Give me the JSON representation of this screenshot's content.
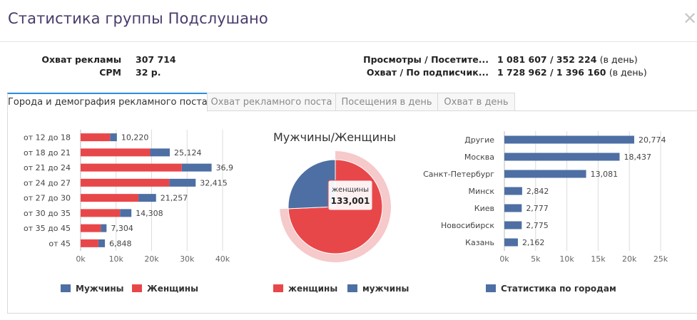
{
  "header": {
    "title": "Статистика группы Подслушано",
    "close": "✕"
  },
  "stats": {
    "left": [
      {
        "label": "Охват рекламы",
        "value": "307 714",
        "unit": ""
      },
      {
        "label": "CPM",
        "value": "32 р.",
        "unit": ""
      }
    ],
    "right": [
      {
        "label": "Просмотры / Посетите...",
        "value": "1 081 607 / 352 224",
        "unit": "(в день)"
      },
      {
        "label": "Охват / По подписчик...",
        "value": "1 728 962 / 1 396 160",
        "unit": "(в день)"
      }
    ]
  },
  "tabs": [
    {
      "label": "Города и демография рекламного поста",
      "active": true
    },
    {
      "label": "Охват рекламного поста",
      "active": false
    },
    {
      "label": "Посещения в день",
      "active": false
    },
    {
      "label": "Охват в день",
      "active": false
    }
  ],
  "colors": {
    "male": "#4e6fa3",
    "female": "#e8474a",
    "accent": "#2a8ddf",
    "title": "#4a3a6b"
  },
  "chart_data": [
    {
      "type": "bar",
      "orientation": "horizontal",
      "stacked": true,
      "categories": [
        "от 12 до 18",
        "от 18 до 21",
        "от 21 до 24",
        "от 24 до 27",
        "от 27 до 30",
        "от 30 до 35",
        "от 35 до 45",
        "от 45"
      ],
      "series": [
        {
          "name": "Женщины",
          "color": "#e8474a",
          "values": [
            8300,
            19600,
            28500,
            25000,
            16300,
            11100,
            5700,
            5000
          ]
        },
        {
          "name": "Мужчины",
          "color": "#4e6fa3",
          "values": [
            1920,
            5524,
            8400,
            7415,
            4957,
            3208,
            1604,
            1848
          ]
        }
      ],
      "labels": [
        "10,220",
        "25,124",
        "36,9",
        "32,415",
        "21,257",
        "14,308",
        "7,304",
        "6,848"
      ],
      "xticks": [
        "0k",
        "10k",
        "20k",
        "30k",
        "40k"
      ],
      "xlim": [
        0,
        40000
      ],
      "grid": true,
      "legend": "bottom"
    },
    {
      "type": "pie",
      "title": "Мужчины/Женщины",
      "slices": [
        {
          "name": "женщины",
          "value": 133001,
          "color": "#e8474a"
        },
        {
          "name": "мужчины",
          "value": 46000,
          "color": "#4e6fa3"
        }
      ],
      "tooltip": {
        "name": "женщины",
        "value": "133,001"
      },
      "legend": "bottom"
    },
    {
      "type": "bar",
      "orientation": "horizontal",
      "categories": [
        "Другие",
        "Москва",
        "Санкт-Петербург",
        "Минск",
        "Киев",
        "Новосибирск",
        "Казань"
      ],
      "series": [
        {
          "name": "Статистика по городам",
          "color": "#4e6fa3",
          "values": [
            20774,
            18437,
            13081,
            2842,
            2777,
            2775,
            2162
          ]
        }
      ],
      "labels": [
        "20,774",
        "18,437",
        "13,081",
        "2,842",
        "2,777",
        "2,775",
        "2,162"
      ],
      "xticks": [
        "0k",
        "5k",
        "10k",
        "15k",
        "20k",
        "25k"
      ],
      "xlim": [
        0,
        25000
      ],
      "grid": true,
      "legend": "bottom"
    }
  ],
  "legends": {
    "age": [
      {
        "label": "Мужчины",
        "color": "#4e6fa3"
      },
      {
        "label": "Женщины",
        "color": "#e8474a"
      }
    ],
    "pie": [
      {
        "label": "женщины",
        "color": "#e8474a"
      },
      {
        "label": "мужчины",
        "color": "#4e6fa3"
      }
    ],
    "city": [
      {
        "label": "Статистика по городам",
        "color": "#4e6fa3"
      }
    ]
  }
}
